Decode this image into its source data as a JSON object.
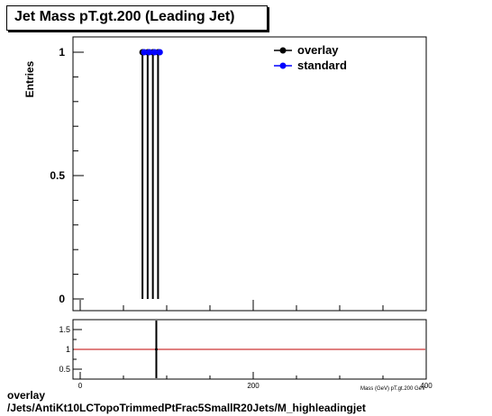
{
  "chart_data": [
    {
      "type": "scatter",
      "title": "Jet Mass pT.gt.200 (Leading Jet)",
      "ylabel": "Entries",
      "xlabel": "",
      "xlim": [
        0,
        400
      ],
      "ylim": [
        0,
        1.05
      ],
      "yticks": [
        "0",
        "0.5",
        "1"
      ],
      "grid": false,
      "legend_position": "top-right",
      "series": [
        {
          "name": "overlay",
          "color": "#000000",
          "points": [
            {
              "x": 72,
              "y": 1
            },
            {
              "x": 78,
              "y": 1
            },
            {
              "x": 84,
              "y": 1
            },
            {
              "x": 90,
              "y": 1
            }
          ]
        },
        {
          "name": "standard",
          "color": "#0000ff",
          "points": [
            {
              "x": 74,
              "y": 1
            },
            {
              "x": 80,
              "y": 1
            },
            {
              "x": 86,
              "y": 1
            },
            {
              "x": 92,
              "y": 1
            }
          ]
        }
      ],
      "error_lines_x": [
        72,
        78,
        84,
        90
      ]
    },
    {
      "type": "line",
      "xlabel": "Mass (GeV) pT.gt.200 GeV",
      "xlim": [
        0,
        400
      ],
      "ylim": [
        0.25,
        1.75
      ],
      "xticks": [
        "0",
        "200",
        "400"
      ],
      "yticks": [
        "0.5",
        "1",
        "1.5"
      ],
      "reference_line_y": 1,
      "reference_color": "#c00000",
      "ratio_point": {
        "x": 88,
        "y": 1
      }
    }
  ],
  "footer": {
    "line1": "overlay",
    "line2": "/Jets/AntiKt10LCTopoTrimmedPtFrac5SmallR20Jets/M_highleadingjet"
  }
}
